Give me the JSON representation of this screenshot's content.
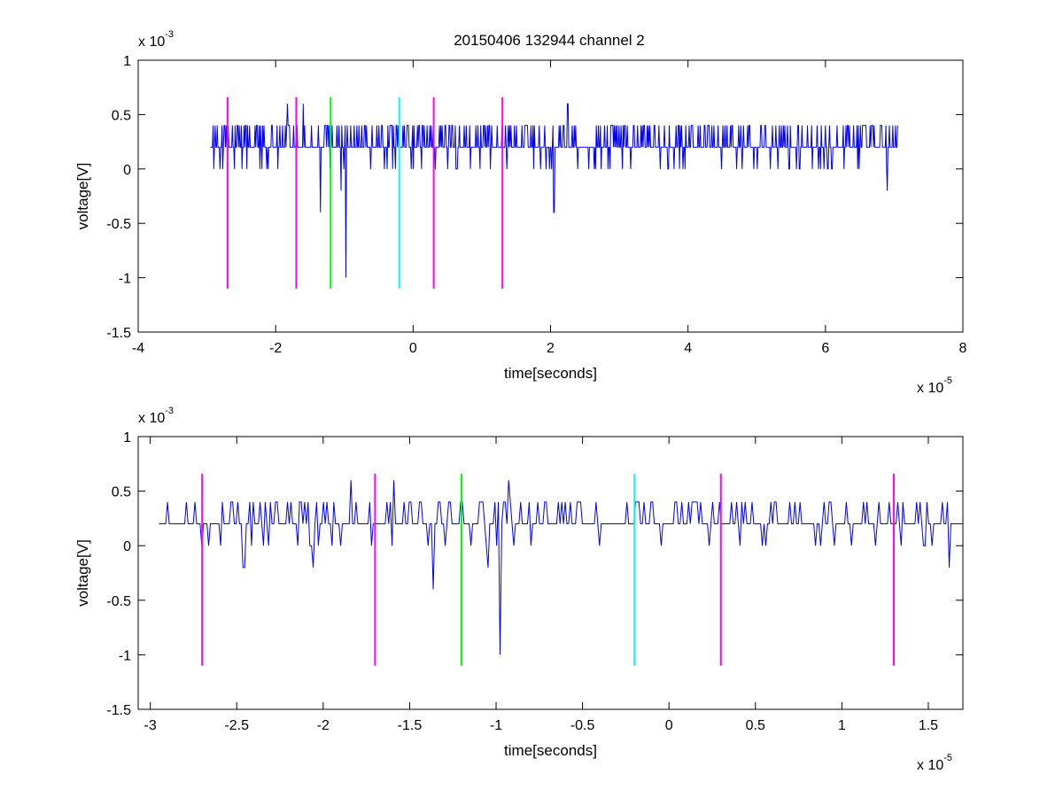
{
  "figure": {
    "title": "20150406 132944 channel 2"
  },
  "chart_data": [
    {
      "type": "line",
      "xlabel": "time[seconds]",
      "ylabel": "voltage[V]",
      "xlim": [
        -4e-05,
        8e-05
      ],
      "ylim": [
        -0.0015,
        0.001
      ],
      "xticks": [
        -4e-05,
        -2e-05,
        0,
        2e-05,
        4e-05,
        6e-05,
        8e-05
      ],
      "xtick_labels": [
        "-4",
        "-2",
        "0",
        "2",
        "4",
        "6",
        "8"
      ],
      "yticks": [
        0.001,
        0.0005,
        0,
        -0.0005,
        -0.001,
        -0.0015
      ],
      "ytick_labels": [
        "1",
        "0.5",
        "0",
        "-0.5",
        "-1",
        "-1.5"
      ],
      "x_multiplier": {
        "base": "x 10",
        "exp": "-5"
      },
      "y_multiplier": {
        "base": "x 10",
        "exp": "-3"
      },
      "grid": false,
      "series": [
        {
          "color": "#0000ff",
          "x_range": [
            -2.95e-05,
            7.05e-05
          ],
          "baseline": 0.0002,
          "quant_step": 0.0002,
          "n_points": 1000,
          "spikes": [
            {
              "x": -1.35e-05,
              "y": -0.0004
            },
            {
              "x": -9.8e-06,
              "y": -0.001
            },
            {
              "x": -1.05e-05,
              "y": -0.0002
            },
            {
              "x": -1.6e-05,
              "y": 0.0006
            },
            {
              "x": -1.83e-05,
              "y": 0.0006
            },
            {
              "x": 2.25e-05,
              "y": 0.0006
            },
            {
              "x": 2.05e-05,
              "y": -0.0004
            },
            {
              "x": 6.9e-05,
              "y": -0.0002
            }
          ]
        }
      ],
      "markers": [
        {
          "x": -2.7e-05,
          "color": "#ff00ff",
          "ymin": -0.0011,
          "ymax": 0.00066
        },
        {
          "x": -1.7e-05,
          "color": "#ff00ff",
          "ymin": -0.0011,
          "ymax": 0.00066
        },
        {
          "x": -1.2e-05,
          "color": "#00ff00",
          "ymin": -0.0011,
          "ymax": 0.00066
        },
        {
          "x": -2e-06,
          "color": "#00ffff",
          "ymin": -0.0011,
          "ymax": 0.00066
        },
        {
          "x": 3e-06,
          "color": "#ff00ff",
          "ymin": -0.0011,
          "ymax": 0.00066
        },
        {
          "x": 1.3e-05,
          "color": "#ff00ff",
          "ymin": -0.0011,
          "ymax": 0.00066
        }
      ]
    },
    {
      "type": "line",
      "xlabel": "time[seconds]",
      "ylabel": "voltage[V]",
      "xlim": [
        -3.07e-05,
        1.7e-05
      ],
      "ylim": [
        -0.0015,
        0.001
      ],
      "xticks": [
        -3e-05,
        -2.5e-05,
        -2e-05,
        -1.5e-05,
        -1e-05,
        -5e-06,
        0,
        5e-06,
        1e-05,
        1.5e-05
      ],
      "xtick_labels": [
        "-3",
        "-2.5",
        "-2",
        "-1.5",
        "-1",
        "-0.5",
        "0",
        "0.5",
        "1",
        "1.5"
      ],
      "yticks": [
        0.001,
        0.0005,
        0,
        -0.0005,
        -0.001,
        -0.0015
      ],
      "ytick_labels": [
        "1",
        "0.5",
        "0",
        "-0.5",
        "-1",
        "-1.5"
      ],
      "x_multiplier": {
        "base": "x 10",
        "exp": "-5"
      },
      "y_multiplier": {
        "base": "x 10",
        "exp": "-3"
      },
      "grid": false,
      "series": [
        {
          "color": "#0000ff",
          "x_range": [
            -2.95e-05,
            1.7e-05
          ],
          "baseline": 0.0002,
          "quant_step": 0.0002,
          "n_points": 470,
          "spikes": [
            {
              "x": -1.36e-05,
              "y": -0.0004
            },
            {
              "x": -9.8e-06,
              "y": -0.001
            },
            {
              "x": -1.05e-05,
              "y": -0.0002
            },
            {
              "x": -1.59e-05,
              "y": 0.0006
            },
            {
              "x": -1.84e-05,
              "y": 0.0006
            },
            {
              "x": -9.3e-06,
              "y": 0.0006
            },
            {
              "x": -2.46e-05,
              "y": -0.0002
            },
            {
              "x": -2.06e-05,
              "y": -0.0002
            },
            {
              "x": 1.62e-05,
              "y": -0.0002
            }
          ]
        }
      ],
      "markers": [
        {
          "x": -2.7e-05,
          "color": "#ff00ff",
          "ymin": -0.0011,
          "ymax": 0.00066
        },
        {
          "x": -1.7e-05,
          "color": "#ff00ff",
          "ymin": -0.0011,
          "ymax": 0.00066
        },
        {
          "x": -1.2e-05,
          "color": "#00ff00",
          "ymin": -0.0011,
          "ymax": 0.00066
        },
        {
          "x": -2e-06,
          "color": "#00ffff",
          "ymin": -0.0011,
          "ymax": 0.00066
        },
        {
          "x": 3e-06,
          "color": "#ff00ff",
          "ymin": -0.0011,
          "ymax": 0.00066
        },
        {
          "x": 1.3e-05,
          "color": "#ff00ff",
          "ymin": -0.0011,
          "ymax": 0.00066
        }
      ]
    }
  ]
}
